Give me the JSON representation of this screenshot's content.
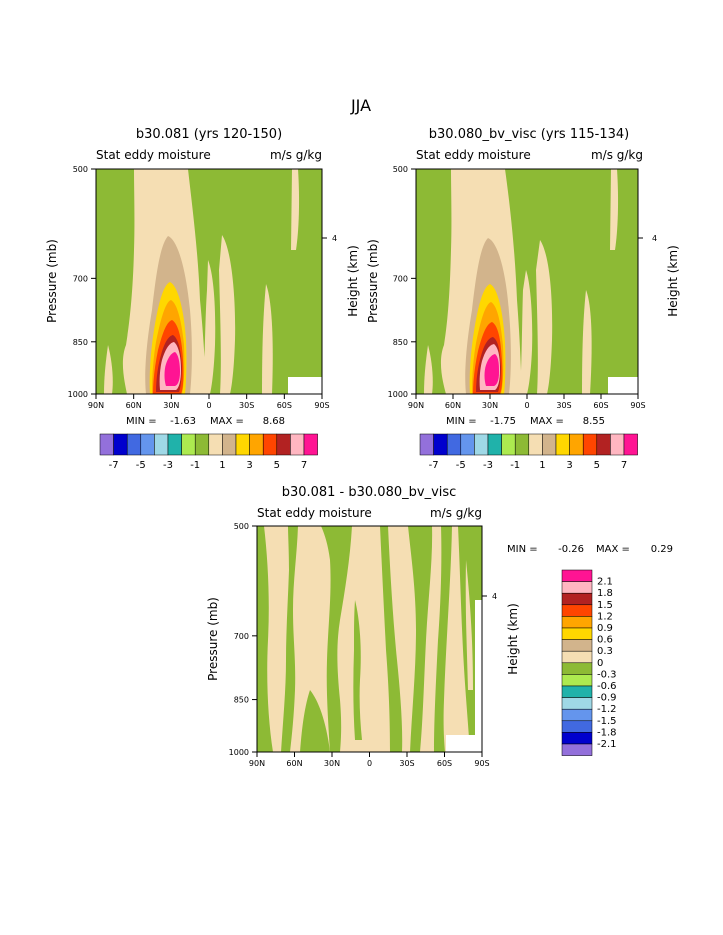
{
  "page_title": "JJA",
  "colors": {
    "palette": [
      "#9370DB",
      "#0000CD",
      "#4169E1",
      "#6495ED",
      "#9FD8E6",
      "#20B2AA",
      "#ADEA50",
      "#8DBA35",
      "#F5DEB3",
      "#D2B48C",
      "#FFD700",
      "#FFA500",
      "#FF4500",
      "#B22222",
      "#FFB6C1",
      "#FF1493"
    ]
  },
  "chart_data": [
    {
      "type": "contour",
      "title": "b30.081 (yrs 120-150)",
      "left_subtitle": "Stat eddy moisture",
      "right_subtitle": "m/s g/kg",
      "ylabel": "Pressure (mb)",
      "ylabel_right": "Height (km)",
      "height_tick": "4",
      "y_ticks": [
        "500",
        "700",
        "850",
        "1000"
      ],
      "x_ticks": [
        "90N",
        "60N",
        "30N",
        "0",
        "30S",
        "60S",
        "90S"
      ],
      "stats": {
        "min_label": "MIN =",
        "min": "-1.63",
        "max_label": "MAX =",
        "max": "8.68"
      },
      "colorbar_labels": [
        "-7",
        "-5",
        "-3",
        "-1",
        "1",
        "3",
        "5",
        "7"
      ]
    },
    {
      "type": "contour",
      "title": "b30.080_bv_visc (yrs 115-134)",
      "left_subtitle": "Stat eddy moisture",
      "right_subtitle": "m/s g/kg",
      "ylabel": "Pressure (mb)",
      "ylabel_right": "Height (km)",
      "height_tick": "4",
      "y_ticks": [
        "500",
        "700",
        "850",
        "1000"
      ],
      "x_ticks": [
        "90N",
        "60N",
        "30N",
        "0",
        "30S",
        "60S",
        "90S"
      ],
      "stats": {
        "min_label": "MIN =",
        "min": "-1.75",
        "max_label": "MAX =",
        "max": "8.55"
      },
      "colorbar_labels": [
        "-7",
        "-5",
        "-3",
        "-1",
        "1",
        "3",
        "5",
        "7"
      ]
    },
    {
      "type": "contour",
      "title": "b30.081 - b30.080_bv_visc",
      "left_subtitle": "Stat eddy moisture",
      "right_subtitle": "m/s g/kg",
      "ylabel": "Pressure (mb)",
      "ylabel_right": "Height (km)",
      "height_tick": "4",
      "y_ticks": [
        "500",
        "700",
        "850",
        "1000"
      ],
      "x_ticks": [
        "90N",
        "60N",
        "30N",
        "0",
        "30S",
        "60S",
        "90S"
      ],
      "stats": {
        "min_label": "MIN =",
        "min": "-0.26",
        "max_label": "MAX =",
        "max": "0.29"
      },
      "colorbar_labels": [
        "2.1",
        "1.8",
        "1.5",
        "1.2",
        "0.9",
        "0.6",
        "0.3",
        "0",
        "-0.3",
        "-0.6",
        "-0.9",
        "-1.2",
        "-1.5",
        "-1.8",
        "-2.1"
      ]
    }
  ]
}
